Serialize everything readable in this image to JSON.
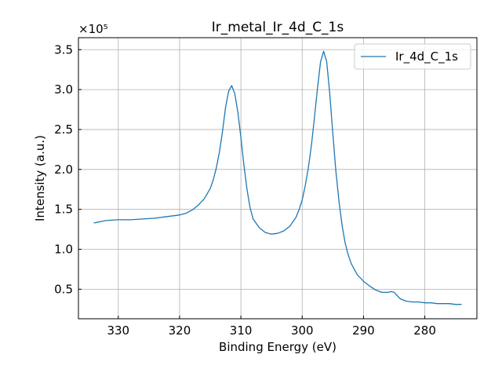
{
  "chart_data": {
    "type": "line",
    "title": "Ir_metal_Ir_4d_C_1s",
    "xlabel": "Binding Energy (eV)",
    "ylabel": "Intensity (a.u.)",
    "y_offset_text": "×10⁵",
    "x_reversed": true,
    "xlim": [
      336.5,
      271.5
    ],
    "ylim": [
      0.13,
      3.65
    ],
    "x_ticks": [
      330,
      320,
      310,
      300,
      290,
      280
    ],
    "x_tick_labels": [
      "330",
      "320",
      "310",
      "300",
      "290",
      "280"
    ],
    "y_ticks": [
      0.5,
      1.0,
      1.5,
      2.0,
      2.5,
      3.0,
      3.5
    ],
    "y_tick_labels": [
      "0.5",
      "1.0",
      "1.5",
      "2.0",
      "2.5",
      "3.0",
      "3.5"
    ],
    "grid": true,
    "legend_position": "top-right",
    "series": [
      {
        "name": "Ir_4d_C_1s",
        "color": "#1f77b4",
        "x": [
          334,
          332,
          330,
          328,
          326,
          324,
          322,
          320,
          319,
          318,
          317,
          316,
          315,
          314.5,
          314,
          313.5,
          313,
          312.5,
          312,
          311.5,
          311,
          310.5,
          310,
          309.5,
          309,
          308.5,
          308,
          307,
          306,
          305,
          304,
          303,
          302,
          301,
          300.5,
          300,
          299.5,
          299,
          298.5,
          298,
          297.5,
          297,
          296.5,
          296,
          295.5,
          295,
          294.5,
          294,
          293.5,
          293,
          292.5,
          292,
          291,
          290,
          289,
          288,
          287,
          286,
          285.5,
          285,
          284.5,
          284,
          283,
          282,
          281,
          280,
          279,
          278,
          277,
          276,
          275,
          274
        ],
        "y": [
          1.33,
          1.36,
          1.37,
          1.37,
          1.38,
          1.39,
          1.41,
          1.43,
          1.45,
          1.49,
          1.55,
          1.63,
          1.76,
          1.87,
          2.02,
          2.22,
          2.48,
          2.78,
          2.98,
          3.05,
          2.95,
          2.72,
          2.4,
          2.05,
          1.75,
          1.52,
          1.38,
          1.27,
          1.21,
          1.19,
          1.2,
          1.23,
          1.29,
          1.4,
          1.5,
          1.62,
          1.8,
          2.02,
          2.3,
          2.65,
          3.02,
          3.35,
          3.48,
          3.35,
          2.95,
          2.45,
          1.98,
          1.6,
          1.3,
          1.08,
          0.93,
          0.82,
          0.68,
          0.6,
          0.54,
          0.49,
          0.46,
          0.46,
          0.47,
          0.46,
          0.42,
          0.38,
          0.35,
          0.34,
          0.34,
          0.33,
          0.33,
          0.32,
          0.32,
          0.32,
          0.31,
          0.31
        ]
      }
    ]
  }
}
